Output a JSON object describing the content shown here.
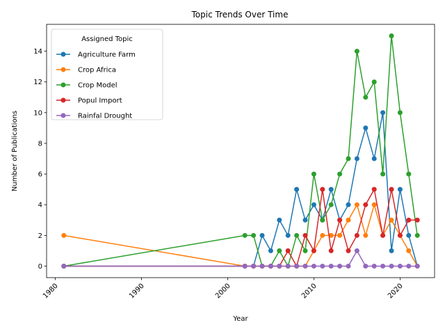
{
  "chart_data": {
    "type": "line",
    "title": "Topic Trends Over Time",
    "xlabel": "Year",
    "ylabel": "Number of Publications",
    "xlim": [
      1979,
      2024
    ],
    "ylim": [
      -0.75,
      15.75
    ],
    "xticks": [
      1980,
      1990,
      2000,
      2010,
      2020
    ],
    "yticks": [
      0,
      2,
      4,
      6,
      8,
      10,
      12,
      14
    ],
    "legend_title": "Assigned Topic",
    "legend_position": "top-left",
    "grid": false,
    "x": [
      1981,
      2002,
      2003,
      2004,
      2005,
      2006,
      2007,
      2008,
      2009,
      2010,
      2011,
      2012,
      2013,
      2014,
      2015,
      2016,
      2017,
      2018,
      2019,
      2020,
      2021,
      2022
    ],
    "series": [
      {
        "name": "Agriculture Farm",
        "color": "#1f77b4",
        "values": [
          0,
          0,
          0,
          2,
          1,
          3,
          2,
          5,
          3,
          4,
          3,
          5,
          3,
          4,
          7,
          9,
          7,
          10,
          1,
          5,
          2,
          0
        ]
      },
      {
        "name": "Crop Africa",
        "color": "#ff7f0e",
        "values": [
          2,
          0,
          0,
          0,
          0,
          0,
          0,
          0,
          0,
          1,
          2,
          2,
          2,
          3,
          4,
          2,
          4,
          2,
          3,
          2,
          1,
          0
        ]
      },
      {
        "name": "Crop Model",
        "color": "#2ca02c",
        "values": [
          0,
          2,
          2,
          0,
          0,
          1,
          0,
          2,
          1,
          6,
          3,
          4,
          6,
          7,
          14,
          11,
          12,
          6,
          15,
          10,
          6,
          2
        ]
      },
      {
        "name": "Popul Import",
        "color": "#d62728",
        "values": [
          0,
          0,
          0,
          0,
          0,
          0,
          1,
          0,
          2,
          1,
          5,
          1,
          3,
          1,
          2,
          4,
          5,
          2,
          5,
          2,
          3,
          3
        ]
      },
      {
        "name": "Rainfal Drought",
        "color": "#9467bd",
        "values": [
          0,
          0,
          0,
          0,
          0,
          0,
          0,
          0,
          0,
          0,
          0,
          0,
          0,
          0,
          1,
          0,
          0,
          0,
          0,
          0,
          0,
          0
        ]
      }
    ]
  }
}
